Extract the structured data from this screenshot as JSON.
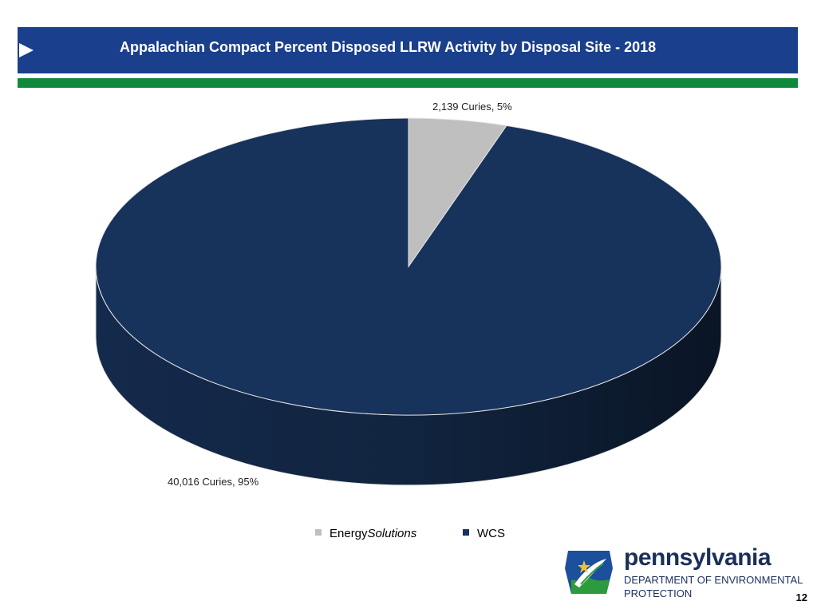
{
  "header": {
    "title": "Appalachian Compact Percent Disposed LLRW Activity by Disposal Site - 2018"
  },
  "chart_data": {
    "type": "pie",
    "title": "Appalachian Compact Percent Disposed LLRW Activity by Disposal Site - 2018",
    "slices": [
      {
        "name": "EnergySolutions",
        "value": 2139,
        "percent": 5,
        "label": "2,139 Curies, 5%",
        "color": "#bfbfbf"
      },
      {
        "name": "WCS",
        "value": 40016,
        "percent": 95,
        "label": "40,016 Curies, 95%",
        "color": "#17325b"
      }
    ],
    "legend": [
      "EnergySolutions",
      "WCS"
    ],
    "legend_position": "bottom"
  },
  "legend": {
    "energy_prefix": "Energy",
    "energy_suffix": "Solutions",
    "wcs": "WCS"
  },
  "footer": {
    "logo_word": "pennsylvania",
    "logo_line1": "DEPARTMENT OF ENVIRONMENTAL",
    "logo_line2": "PROTECTION",
    "page_number": "12"
  },
  "colors": {
    "header_blue": "#1a3f8c",
    "accent_green": "#0f8a3c",
    "wcs_navy": "#17325b",
    "energy_gray": "#bfbfbf"
  }
}
